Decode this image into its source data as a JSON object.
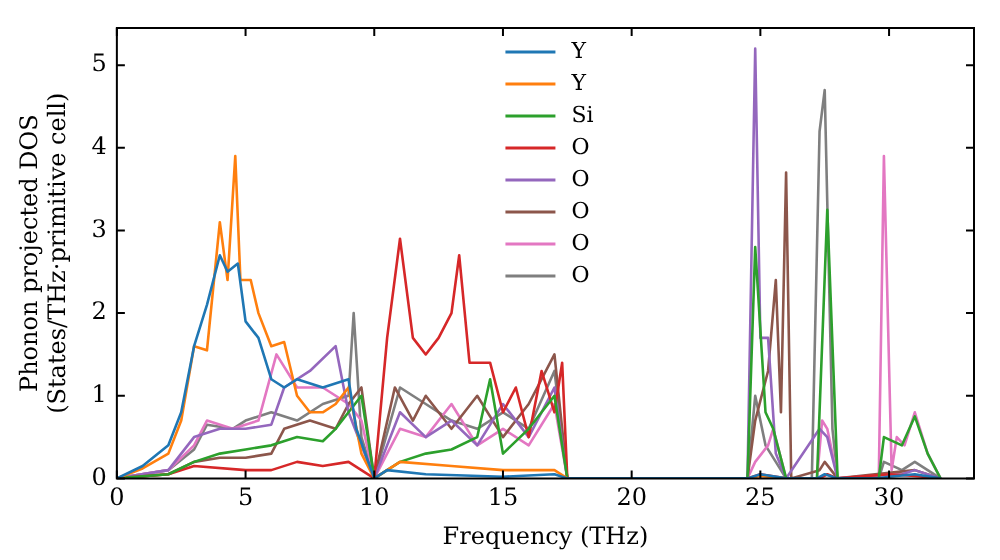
{
  "chart_data": {
    "type": "line",
    "xlabel": "Frequency (THz)",
    "ylabel": "Phonon projected DOS\n(States/THz·primitive cell)",
    "xlim": [
      0,
      33.3
    ],
    "ylim": [
      0,
      5.45
    ],
    "xticks": [
      0,
      5,
      10,
      15,
      20,
      25,
      30
    ],
    "yticks": [
      0,
      1,
      2,
      3,
      4,
      5
    ],
    "grid": false,
    "legend": "top",
    "marker": "none",
    "line_style": "solid",
    "series": [
      {
        "name": "Y",
        "color": "#1f77b4",
        "x": [
          0,
          1,
          2,
          2.5,
          3,
          3.5,
          4,
          4.3,
          4.7,
          5,
          5.5,
          6,
          6.5,
          7,
          8,
          9,
          9.3,
          10,
          10.5,
          12,
          15,
          17,
          17.5,
          24.5,
          25,
          26,
          27.2,
          27.5,
          28,
          29.6,
          30,
          31,
          32
        ],
        "values": [
          0,
          0.15,
          0.4,
          0.8,
          1.6,
          2.1,
          2.7,
          2.5,
          2.6,
          1.9,
          1.7,
          1.2,
          1.1,
          1.2,
          1.1,
          1.2,
          0.6,
          0,
          0.1,
          0.05,
          0.02,
          0.05,
          0,
          0,
          0.05,
          0,
          0,
          0.05,
          0,
          0,
          0.02,
          0.05,
          0
        ]
      },
      {
        "name": "Y",
        "color": "#ff7f0e",
        "x": [
          0,
          1,
          2,
          2.5,
          3,
          3.5,
          4,
          4.3,
          4.6,
          4.8,
          5.2,
          5.5,
          6,
          6.5,
          7,
          7.5,
          8,
          8.5,
          9,
          9.5,
          10,
          11,
          13,
          15,
          17,
          17.5,
          24.5,
          25,
          26
        ],
        "values": [
          0,
          0.12,
          0.3,
          0.7,
          1.6,
          1.55,
          3.1,
          2.4,
          3.9,
          2.4,
          2.4,
          2.0,
          1.6,
          1.65,
          1.0,
          0.8,
          0.8,
          0.9,
          1.1,
          0.3,
          0,
          0.2,
          0.15,
          0.1,
          0.1,
          0,
          0,
          0.03,
          0
        ]
      },
      {
        "name": "Si",
        "color": "#2ca02c",
        "x": [
          0,
          2,
          3,
          4,
          5,
          6,
          7,
          8,
          8.5,
          9,
          9.5,
          10,
          11,
          12,
          13,
          14,
          14.5,
          15,
          16,
          17,
          17.5,
          24.5,
          24.8,
          25.2,
          25.5,
          26,
          27.2,
          27.6,
          28,
          29.6,
          29.8,
          30.5,
          31,
          31.5,
          32
        ],
        "values": [
          0,
          0.05,
          0.2,
          0.3,
          0.35,
          0.4,
          0.5,
          0.45,
          0.6,
          0.8,
          1.0,
          0,
          0.2,
          0.3,
          0.35,
          0.5,
          1.2,
          0.3,
          0.6,
          1.0,
          0,
          0,
          2.8,
          0.8,
          0.6,
          0,
          0,
          3.25,
          0,
          0,
          0.5,
          0.4,
          0.75,
          0.3,
          0
        ]
      },
      {
        "name": "O",
        "color": "#d62728",
        "x": [
          0,
          2,
          3,
          5,
          6,
          7,
          8,
          9,
          9.5,
          10,
          10.5,
          11,
          11.5,
          12,
          12.5,
          13,
          13.3,
          13.7,
          14.5,
          15,
          15.5,
          16,
          16.5,
          17,
          17.3,
          17.5,
          24.5,
          25,
          26,
          27.3,
          27.6,
          28,
          30,
          31,
          32
        ],
        "values": [
          0,
          0.05,
          0.15,
          0.1,
          0.1,
          0.2,
          0.15,
          0.2,
          0.1,
          0,
          1.7,
          2.9,
          1.7,
          1.5,
          1.7,
          2.0,
          2.7,
          1.4,
          1.4,
          0.8,
          1.1,
          0.5,
          1.3,
          0.8,
          1.4,
          0,
          0,
          0.05,
          0,
          0,
          0.05,
          0,
          0.05,
          0.03,
          0
        ]
      },
      {
        "name": "O",
        "color": "#9467bd",
        "x": [
          0,
          2,
          3,
          4,
          5,
          6,
          6.5,
          7.5,
          8.5,
          9,
          10,
          11,
          12,
          13,
          14,
          15,
          16,
          17,
          17.5,
          24.5,
          24.8,
          25,
          25.3,
          25.6,
          26,
          27.3,
          27.6,
          28,
          30.5,
          31,
          32
        ],
        "values": [
          0,
          0.1,
          0.5,
          0.6,
          0.6,
          0.65,
          1.1,
          1.3,
          1.6,
          0.8,
          0,
          0.8,
          0.5,
          0.7,
          0.4,
          0.9,
          0.5,
          1.1,
          0,
          0,
          5.2,
          1.7,
          1.7,
          0.3,
          0,
          0.6,
          0.5,
          0,
          0.05,
          0.1,
          0
        ]
      },
      {
        "name": "O",
        "color": "#8c564b",
        "x": [
          0,
          2,
          3,
          4,
          5,
          6,
          6.5,
          7.5,
          8.5,
          9,
          9.5,
          10,
          10.8,
          11.5,
          12,
          13,
          14,
          15,
          16,
          17,
          17.5,
          24.5,
          24.8,
          25.3,
          25.6,
          25.8,
          26,
          26.2,
          27.3,
          27.5,
          28,
          31,
          32
        ],
        "values": [
          0,
          0.05,
          0.2,
          0.25,
          0.25,
          0.3,
          0.6,
          0.7,
          0.6,
          0.9,
          1.1,
          0,
          1.1,
          0.7,
          1.0,
          0.6,
          1.0,
          0.5,
          0.9,
          1.5,
          0,
          0,
          0.7,
          1.3,
          2.4,
          0.8,
          3.7,
          0,
          0.1,
          0.2,
          0,
          0.1,
          0
        ]
      },
      {
        "name": "O",
        "color": "#e377c2",
        "x": [
          0,
          2,
          3,
          3.5,
          4.5,
          5.5,
          6.2,
          7,
          8,
          9,
          9.5,
          10,
          11,
          12,
          13,
          14,
          15,
          16,
          17,
          17.5,
          24.5,
          24.8,
          25.3,
          25.5,
          26,
          27.2,
          27.4,
          27.6,
          28,
          29.6,
          29.8,
          30.1,
          30.3,
          30.6,
          31,
          31.5,
          32
        ],
        "values": [
          0,
          0.1,
          0.4,
          0.7,
          0.6,
          0.7,
          1.5,
          1.1,
          1.1,
          0.9,
          0.7,
          0,
          0.6,
          0.5,
          0.9,
          0.4,
          0.6,
          0.4,
          0.9,
          0,
          0,
          0.2,
          0.4,
          0.6,
          0,
          0,
          0.7,
          0.6,
          0,
          0,
          3.9,
          0.1,
          0.5,
          0.4,
          0.8,
          0.3,
          0
        ]
      },
      {
        "name": "O",
        "color": "#7f7f7f",
        "x": [
          0,
          2,
          3,
          3.5,
          4.5,
          5,
          6,
          7,
          8,
          9,
          9.2,
          9.5,
          10,
          11,
          12,
          13,
          14,
          15,
          16,
          17,
          17.5,
          24.5,
          24.8,
          25.2,
          25.6,
          26,
          27,
          27.3,
          27.5,
          27.8,
          28,
          29.6,
          29.8,
          30.5,
          31,
          31.5,
          32
        ],
        "values": [
          0,
          0.1,
          0.35,
          0.65,
          0.6,
          0.7,
          0.8,
          0.7,
          0.9,
          1.0,
          2.0,
          0.5,
          0,
          1.1,
          0.9,
          0.7,
          0.6,
          0.8,
          0.6,
          1.3,
          0,
          0,
          1.0,
          0.4,
          0.2,
          0,
          0,
          4.2,
          4.7,
          0.6,
          0,
          0,
          0.2,
          0.1,
          0.2,
          0.1,
          0
        ]
      }
    ]
  }
}
